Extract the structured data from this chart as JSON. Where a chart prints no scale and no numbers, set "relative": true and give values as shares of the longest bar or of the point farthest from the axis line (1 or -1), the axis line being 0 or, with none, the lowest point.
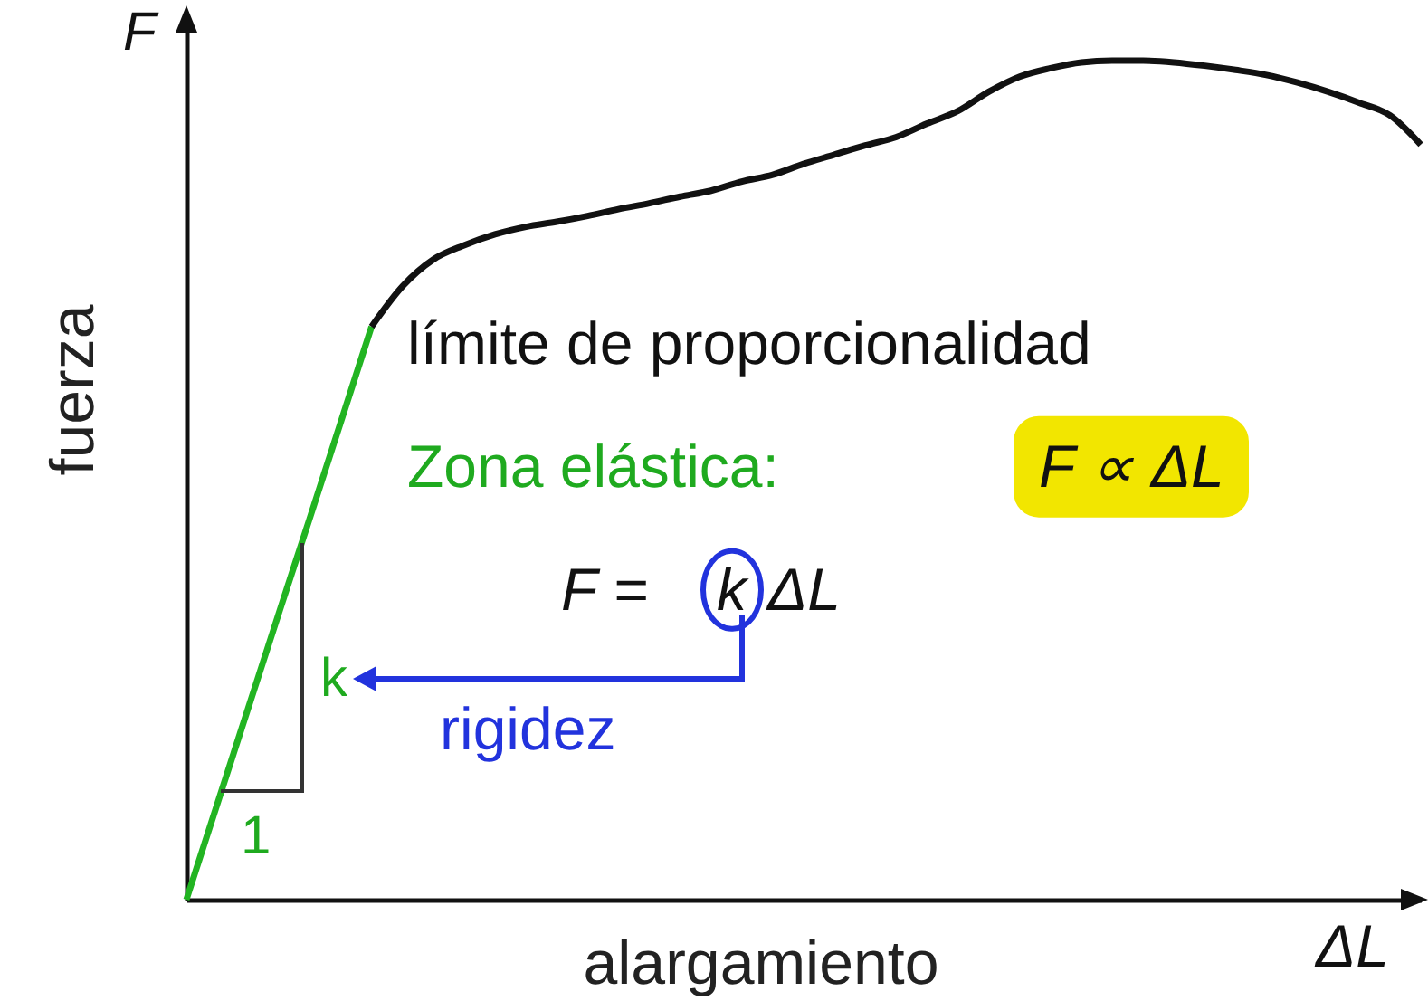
{
  "chart_data": {
    "type": "line",
    "relative": true,
    "xlabel": "alargamiento",
    "ylabel": "fuerza",
    "categories": [
      null,
      null,
      null,
      null,
      null,
      null,
      null,
      null,
      null,
      null,
      null,
      null,
      null,
      null,
      null,
      null,
      null,
      null,
      null,
      null,
      null,
      null,
      null,
      null,
      null,
      null,
      null,
      null,
      null,
      null,
      null,
      null,
      null,
      null,
      null,
      null,
      null,
      null,
      null,
      null,
      null
    ],
    "series": [
      {
        "color": "#22b422",
        "values": [
          0,
          0.114,
          0.228,
          0.342,
          0.455,
          0.569,
          0.683,
          null,
          null,
          null,
          null,
          null,
          null,
          null,
          null,
          null,
          null,
          null,
          null,
          null,
          null,
          null,
          null,
          null,
          null,
          null,
          null,
          null,
          null,
          null,
          null,
          null,
          null,
          null,
          null,
          null,
          null,
          null,
          null,
          null,
          null
        ]
      },
      {
        "color": "#111111",
        "values": [
          null,
          null,
          null,
          null,
          null,
          null,
          0.683,
          0.731,
          0.763,
          0.78,
          0.793,
          0.802,
          0.808,
          0.815,
          0.823,
          0.83,
          0.838,
          0.845,
          0.856,
          0.864,
          0.877,
          0.888,
          0.899,
          0.909,
          0.925,
          0.94,
          0.963,
          0.981,
          0.991,
          0.998,
          1,
          1,
          0.998,
          0.994,
          0.989,
          0.983,
          0.974,
          0.963,
          0.95,
          0.935,
          0.9
        ]
      }
    ],
    "annotations": [
      "límite de proporcionalidad",
      "Zona elástica:",
      "F ∝ ΔL",
      "F =",
      "k",
      "ΔL",
      "k",
      "rigidez",
      "1",
      "F",
      "ΔL"
    ]
  }
}
